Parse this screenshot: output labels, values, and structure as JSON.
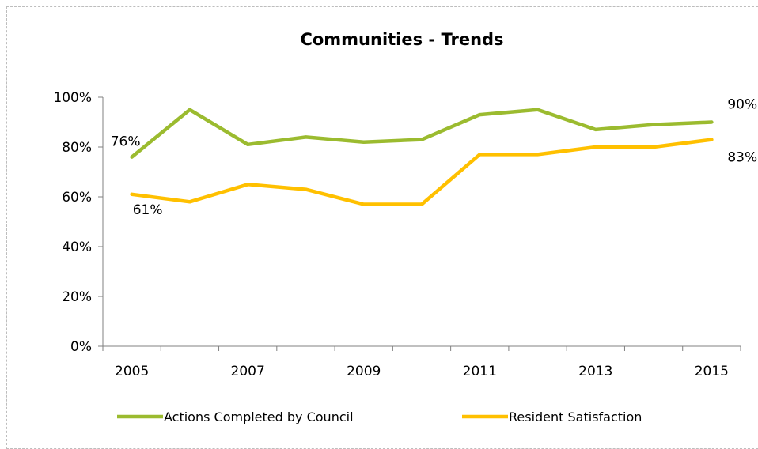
{
  "chart_data": {
    "type": "line",
    "title": "Communities - Trends",
    "xlabel": "",
    "ylabel": "",
    "x": [
      2005,
      2006,
      2007,
      2008,
      2009,
      2010,
      2011,
      2012,
      2013,
      2014,
      2015
    ],
    "x_tick_labels": [
      "2005",
      "2007",
      "2009",
      "2011",
      "2013",
      "2015"
    ],
    "y_tick_labels": [
      "0%",
      "20%",
      "40%",
      "60%",
      "80%",
      "100%"
    ],
    "ylim": [
      0,
      100
    ],
    "grid": false,
    "legend_position": "bottom",
    "series": [
      {
        "name": "Actions Completed by Council",
        "color": "#9bbb2f",
        "values": [
          76,
          95,
          81,
          84,
          82,
          83,
          93,
          95,
          87,
          89,
          90
        ],
        "data_labels": [
          {
            "index": 0,
            "text": "76%"
          },
          {
            "index": 10,
            "text": "90%"
          }
        ]
      },
      {
        "name": "Resident Satisfaction",
        "color": "#ffc000",
        "values": [
          61,
          58,
          65,
          63,
          57,
          57,
          77,
          77,
          80,
          80,
          83
        ],
        "data_labels": [
          {
            "index": 0,
            "text": "61%"
          },
          {
            "index": 10,
            "text": "83%"
          }
        ]
      }
    ]
  }
}
